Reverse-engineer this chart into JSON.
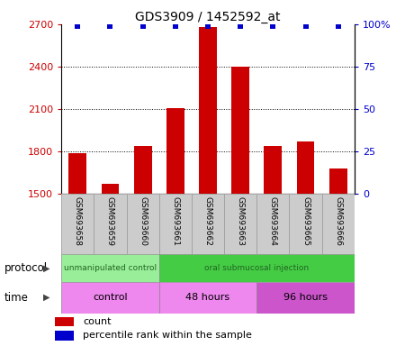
{
  "title": "GDS3909 / 1452592_at",
  "samples": [
    "GSM693658",
    "GSM693659",
    "GSM693660",
    "GSM693661",
    "GSM693662",
    "GSM693663",
    "GSM693664",
    "GSM693665",
    "GSM693666"
  ],
  "counts": [
    1790,
    1570,
    1840,
    2105,
    2680,
    2400,
    1840,
    1870,
    1680
  ],
  "percentile_ranks": [
    99,
    99,
    99,
    99,
    99,
    99,
    99,
    99,
    99
  ],
  "ylim_left": [
    1500,
    2700
  ],
  "ylim_right": [
    0,
    100
  ],
  "yticks_left": [
    1500,
    1800,
    2100,
    2400,
    2700
  ],
  "yticks_right": [
    0,
    25,
    50,
    75,
    100
  ],
  "bar_color": "#cc0000",
  "dot_color": "#0000cc",
  "protocol_groups": [
    {
      "label": "unmanipulated control",
      "start": 0,
      "end": 3,
      "color": "#99ee99"
    },
    {
      "label": "oral submucosal injection",
      "start": 3,
      "end": 9,
      "color": "#44cc44"
    }
  ],
  "time_groups": [
    {
      "label": "control",
      "start": 0,
      "end": 3,
      "color": "#ee88ee"
    },
    {
      "label": "48 hours",
      "start": 3,
      "end": 6,
      "color": "#ee88ee"
    },
    {
      "label": "96 hours",
      "start": 6,
      "end": 9,
      "color": "#cc55cc"
    }
  ],
  "legend_count_label": "count",
  "legend_pct_label": "percentile rank within the sample",
  "xlabel_protocol": "protocol",
  "xlabel_time": "time",
  "background_color": "#ffffff",
  "label_area_bg": "#cccccc"
}
